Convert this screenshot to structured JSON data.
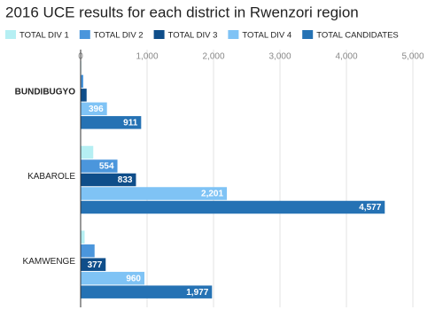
{
  "chart_data": {
    "type": "hbar",
    "title": "2016 UCE results for each district in Rwenzori region",
    "categories": [
      "BUNDIBUGYO",
      "KABAROLE",
      "KAMWENGE"
    ],
    "series": [
      {
        "name": "TOTAL DIV 1",
        "color": "#b5eff3",
        "values": [
          10,
          190,
          60
        ],
        "value_labels": [
          null,
          null,
          null
        ]
      },
      {
        "name": "TOTAL DIV 2",
        "color": "#4b96dc",
        "values": [
          40,
          554,
          210
        ],
        "value_labels": [
          null,
          "554",
          null
        ]
      },
      {
        "name": "TOTAL DIV 3",
        "color": "#0f4e8a",
        "values": [
          90,
          833,
          377
        ],
        "value_labels": [
          null,
          "833",
          "377"
        ]
      },
      {
        "name": "TOTAL DIV 4",
        "color": "#7fc3f5",
        "values": [
          396,
          2201,
          960
        ],
        "value_labels": [
          "396",
          "2,201",
          "960"
        ]
      },
      {
        "name": "TOTAL CANDIDATES",
        "color": "#2572b4",
        "values": [
          911,
          4577,
          1977
        ],
        "value_labels": [
          "911",
          "4,577",
          "1,977"
        ]
      }
    ],
    "xlim": [
      0,
      5000
    ],
    "xticks": [
      0,
      {
        "value": 1000,
        "label": "1,000"
      },
      {
        "value": 2000,
        "label": "2,000"
      },
      {
        "value": 3000,
        "label": "3,000"
      },
      {
        "value": 4000,
        "label": "4,000"
      },
      {
        "value": 5000,
        "label": "5,000"
      }
    ],
    "grid": true
  }
}
